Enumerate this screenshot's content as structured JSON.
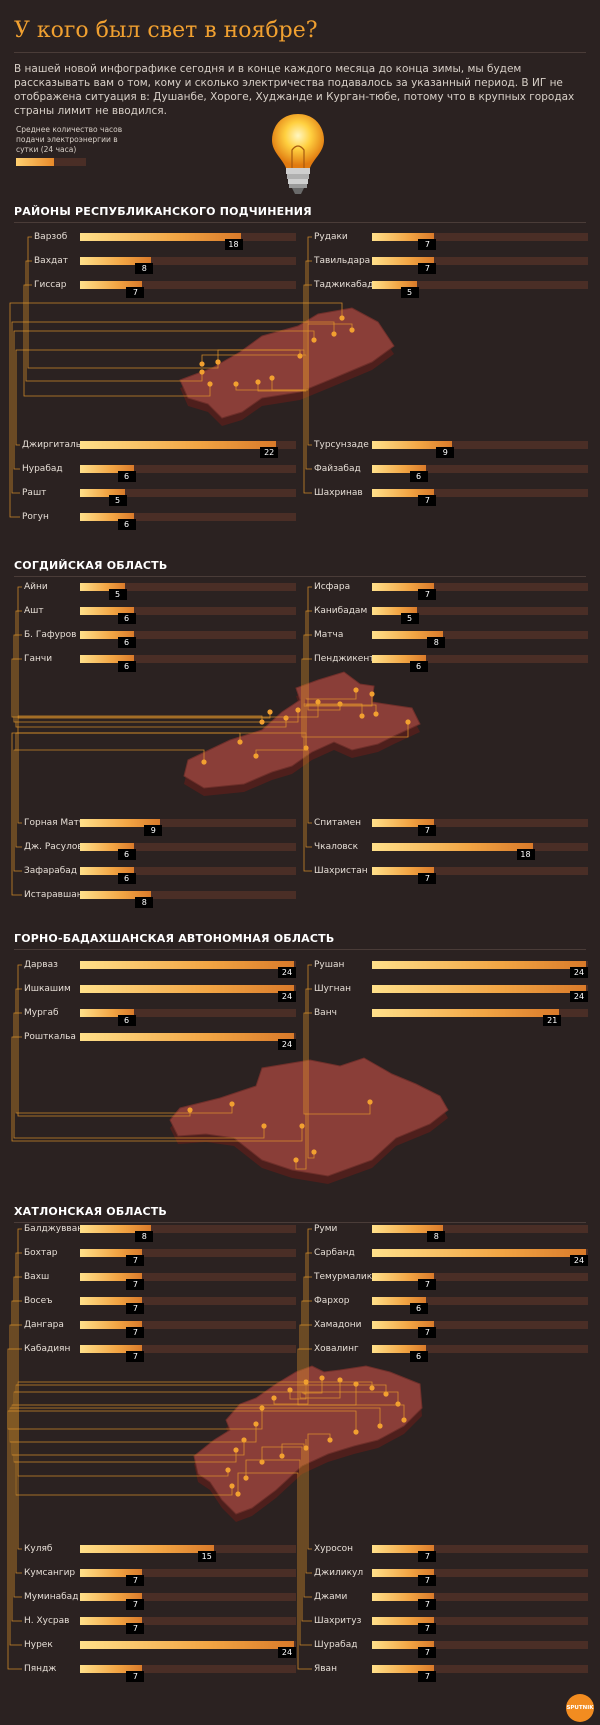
{
  "title": "У кого был свет в ноябре?",
  "intro": "В нашей новой инфографике сегодня и в конце каждого месяца до конца зимы, мы будем рассказывать вам о том, кому и сколько электричества подавалось за указанный период.  В ИГ не отображена ситуация в: Душанбе, Хороге, Худжанде и Курган-тюбе, потому что в крупных городах страны лимит не вводился.",
  "legend": "Среднее количество часов подачи электроэнергии в сутки (24 часа)",
  "logo": "SPUTNIK",
  "colors": {
    "background": "#2b2221",
    "title": "#f0a030",
    "bar_fill": "#f2a544",
    "bar_track": "#4a2e26",
    "map": "#8a3e38",
    "wire": "#e89a2a"
  },
  "chart_data": [
    {
      "type": "bar",
      "title": "РАЙОНЫ РЕСПУБЛИКАНСКОГО ПОДЧИНЕНИЯ",
      "xlim": [
        0,
        24
      ],
      "categories": [
        "Варзоб",
        "Вахдат",
        "Гиссар",
        "Рудаки",
        "Тавильдара",
        "Таджикабад",
        "Джиргиталь",
        "Нурабад",
        "Рашт",
        "Рогун",
        "Турсунзаде",
        "Файзабад",
        "Шахринав"
      ],
      "values": [
        18,
        8,
        7,
        7,
        7,
        5,
        22,
        6,
        5,
        6,
        9,
        6,
        7
      ]
    },
    {
      "type": "bar",
      "title": "СОГДИЙСКАЯ ОБЛАСТЬ",
      "xlim": [
        0,
        24
      ],
      "categories": [
        "Айни",
        "Ашт",
        "Б. Гафуров",
        "Ганчи",
        "Исфара",
        "Канибадам",
        "Матча",
        "Пенджикент",
        "Горная Матча",
        "Дж. Расулов",
        "Зафарабад",
        "Истаравшан",
        "Спитамен",
        "Чкаловск",
        "Шахристан"
      ],
      "values": [
        5,
        6,
        6,
        6,
        7,
        5,
        8,
        6,
        9,
        6,
        6,
        8,
        7,
        18,
        7
      ]
    },
    {
      "type": "bar",
      "title": "ГОРНО-БАДАХШАНСКАЯ АВТОНОМНАЯ ОБЛАСТЬ",
      "xlim": [
        0,
        24
      ],
      "categories": [
        "Дарваз",
        "Ишкашим",
        "Мургаб",
        "Рошткальа",
        "Рушан",
        "Шугнан",
        "Ванч"
      ],
      "values": [
        24,
        24,
        6,
        24,
        24,
        24,
        21
      ]
    },
    {
      "type": "bar",
      "title": "ХАТЛОНСКАЯ ОБЛАСТЬ",
      "xlim": [
        0,
        24
      ],
      "categories": [
        "Балджувван",
        "Бохтар",
        "Вахш",
        "Восеъ",
        "Дангара",
        "Кабадиян",
        "Руми",
        "Сарбанд",
        "Темурмалик",
        "Фархор",
        "Хамадони",
        "Ховалинг",
        "Куляб",
        "Кумсангир",
        "Муминабад",
        "Н. Хусрав",
        "Нурек",
        "Пяндж",
        "Хуросон",
        "Джиликул",
        "Джами",
        "Шахритуз",
        "Шурабад",
        "Яван"
      ],
      "values": [
        8,
        7,
        7,
        7,
        7,
        7,
        8,
        24,
        7,
        6,
        7,
        6,
        15,
        7,
        7,
        7,
        24,
        7,
        7,
        7,
        7,
        7,
        7,
        7
      ]
    }
  ]
}
